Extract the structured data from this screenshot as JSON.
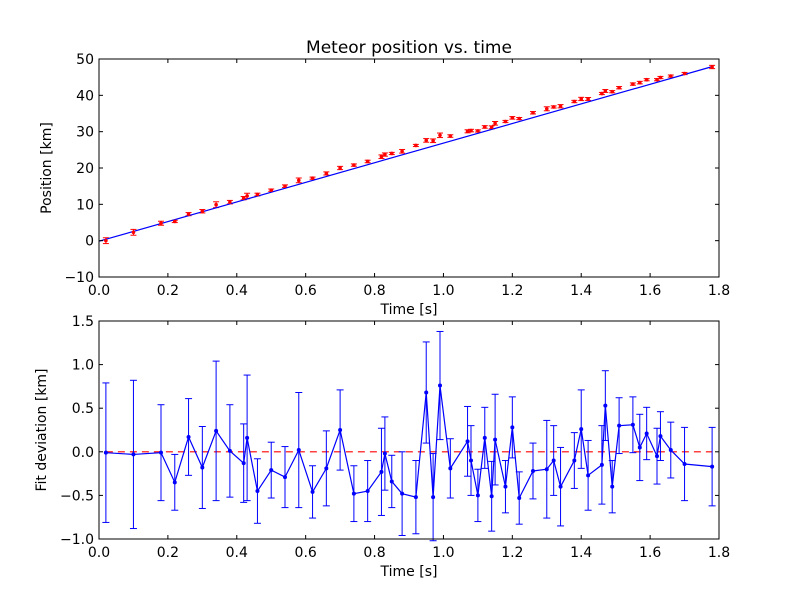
{
  "chart_data": [
    {
      "type": "scatter",
      "title": "Meteor position vs. time",
      "xlabel": "Time [s]",
      "ylabel": "Position [km]",
      "xlim": [
        0.0,
        1.8
      ],
      "ylim": [
        -10,
        50
      ],
      "xticks": [
        "0.0",
        "0.2",
        "0.4",
        "0.6",
        "0.8",
        "1.0",
        "1.2",
        "1.4",
        "1.6",
        "1.8"
      ],
      "yticks": [
        "−10",
        "0",
        "10",
        "20",
        "30",
        "40",
        "50"
      ],
      "grid": false,
      "colors": {
        "points": "#ff0000",
        "fit_line": "#0000ff"
      },
      "series": [
        {
          "kind": "errorbar_points",
          "x": [
            0.02,
            0.1,
            0.18,
            0.22,
            0.26,
            0.3,
            0.34,
            0.38,
            0.42,
            0.43,
            0.46,
            0.5,
            0.54,
            0.58,
            0.62,
            0.66,
            0.7,
            0.74,
            0.78,
            0.82,
            0.83,
            0.85,
            0.88,
            0.92,
            0.95,
            0.97,
            0.99,
            1.02,
            1.07,
            1.08,
            1.1,
            1.12,
            1.14,
            1.15,
            1.18,
            1.2,
            1.22,
            1.26,
            1.3,
            1.32,
            1.34,
            1.38,
            1.4,
            1.42,
            1.46,
            1.47,
            1.49,
            1.51,
            1.55,
            1.57,
            1.59,
            1.62,
            1.63,
            1.66,
            1.7,
            1.78
          ],
          "y": [
            0.0,
            2.3,
            4.8,
            5.3,
            7.3,
            8.1,
            9.9,
            10.6,
            11.7,
            12.3,
            12.7,
            13.9,
            15.0,
            16.6,
            17.2,
            18.5,
            20.0,
            20.8,
            21.8,
            23.1,
            23.7,
            24.0,
            24.6,
            26.2,
            27.6,
            27.5,
            29.0,
            28.8,
            30.1,
            30.3,
            30.2,
            31.3,
            31.2,
            32.3,
            32.8,
            33.8,
            33.6,
            35.2,
            36.3,
            36.8,
            37.0,
            38.3,
            39.0,
            39.0,
            40.5,
            41.2,
            41.0,
            42.1,
            43.1,
            43.5,
            44.3,
            44.3,
            44.9,
            45.3,
            46.0,
            47.8
          ],
          "yerr": [
            0.8,
            0.8,
            0.55,
            0.32,
            0.43,
            0.47,
            0.8,
            0.48,
            0.45,
            0.75,
            0.37,
            0.32,
            0.35,
            0.65,
            0.3,
            0.43,
            0.45,
            0.32,
            0.35,
            0.5,
            0.45,
            0.3,
            0.5,
            0.3,
            0.5,
            0.5,
            0.62,
            0.35,
            0.42,
            0.35,
            0.3,
            0.35,
            0.4,
            0.5,
            0.3,
            0.35,
            0.3,
            0.33,
            0.55,
            0.3,
            0.45,
            0.32,
            0.45,
            0.4,
            0.3,
            0.4,
            0.3,
            0.32,
            0.32,
            0.35,
            0.3,
            0.3,
            0.3,
            0.3,
            0.3,
            0.45
          ]
        },
        {
          "kind": "fit_line",
          "x": [
            0.0,
            1.78
          ],
          "y": [
            -0.15,
            47.9
          ]
        }
      ]
    },
    {
      "type": "line",
      "xlabel": "Time [s]",
      "ylabel": "Fit deviation [km]",
      "xlim": [
        0.0,
        1.8
      ],
      "ylim": [
        -1.0,
        1.5
      ],
      "xticks": [
        "0.0",
        "0.2",
        "0.4",
        "0.6",
        "0.8",
        "1.0",
        "1.2",
        "1.4",
        "1.6",
        "1.8"
      ],
      "yticks": [
        "−1.0",
        "−0.5",
        "0.0",
        "0.5",
        "1.0",
        "1.5"
      ],
      "grid": false,
      "colors": {
        "series": "#0000ff",
        "zero_line": "#ff0000"
      },
      "reference_line": {
        "y": 0.0,
        "style": "dashed"
      },
      "series": [
        {
          "x": [
            0.02,
            0.1,
            0.18,
            0.22,
            0.26,
            0.3,
            0.34,
            0.38,
            0.42,
            0.43,
            0.46,
            0.5,
            0.54,
            0.58,
            0.62,
            0.66,
            0.7,
            0.74,
            0.78,
            0.82,
            0.83,
            0.85,
            0.88,
            0.92,
            0.95,
            0.97,
            0.99,
            1.02,
            1.07,
            1.08,
            1.1,
            1.12,
            1.14,
            1.15,
            1.18,
            1.2,
            1.22,
            1.26,
            1.3,
            1.32,
            1.34,
            1.38,
            1.4,
            1.42,
            1.46,
            1.47,
            1.49,
            1.51,
            1.55,
            1.57,
            1.59,
            1.62,
            1.63,
            1.66,
            1.7,
            1.78
          ],
          "y": [
            -0.01,
            -0.03,
            -0.01,
            -0.35,
            0.17,
            -0.18,
            0.24,
            0.01,
            -0.13,
            0.16,
            -0.45,
            -0.21,
            -0.29,
            0.02,
            -0.46,
            -0.19,
            0.25,
            -0.48,
            -0.45,
            -0.23,
            -0.02,
            -0.34,
            -0.48,
            -0.52,
            0.68,
            -0.52,
            0.76,
            -0.19,
            0.12,
            -0.1,
            -0.5,
            0.16,
            -0.51,
            0.14,
            -0.4,
            0.28,
            -0.53,
            -0.22,
            -0.2,
            -0.1,
            -0.4,
            -0.1,
            0.26,
            -0.27,
            -0.15,
            0.53,
            -0.4,
            0.3,
            0.31,
            0.05,
            0.21,
            -0.05,
            0.18,
            0.02,
            -0.14,
            -0.17
          ],
          "yerr": [
            0.8,
            0.85,
            0.55,
            0.32,
            0.44,
            0.47,
            0.8,
            0.53,
            0.45,
            0.72,
            0.37,
            0.32,
            0.35,
            0.66,
            0.3,
            0.43,
            0.46,
            0.32,
            0.35,
            0.5,
            0.42,
            0.3,
            0.48,
            0.42,
            0.58,
            0.5,
            0.62,
            0.34,
            0.4,
            0.4,
            0.3,
            0.35,
            0.4,
            0.52,
            0.3,
            0.35,
            0.3,
            0.32,
            0.56,
            0.4,
            0.45,
            0.32,
            0.45,
            0.4,
            0.45,
            0.4,
            0.3,
            0.32,
            0.32,
            0.38,
            0.3,
            0.32,
            0.28,
            0.32,
            0.42,
            0.45
          ]
        }
      ]
    }
  ]
}
